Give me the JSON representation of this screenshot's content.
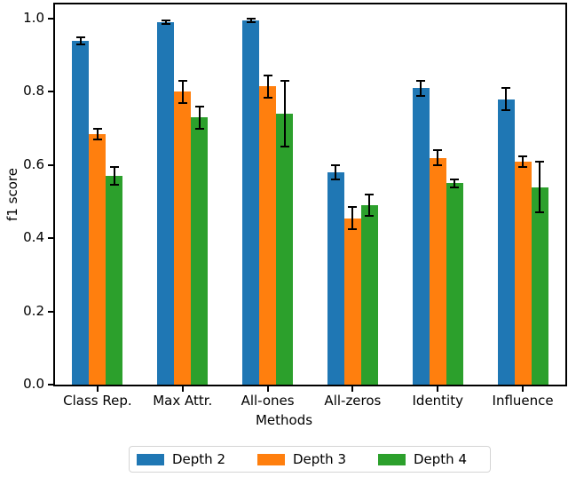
{
  "chart_data": {
    "type": "bar",
    "title": "",
    "xlabel": "Methods",
    "ylabel": "f1 score",
    "categories": [
      "Class Rep.",
      "Max Attr.",
      "All-ones",
      "All-zeros",
      "Identity",
      "Influence"
    ],
    "series": [
      {
        "name": "Depth 2",
        "color": "#1f77b4",
        "hatch": "x",
        "values": [
          0.94,
          0.99,
          0.995,
          0.58,
          0.81,
          0.78
        ],
        "errors": [
          0.01,
          0.005,
          0.005,
          0.02,
          0.02,
          0.03
        ]
      },
      {
        "name": "Depth 3",
        "color": "#ff7f0e",
        "hatch": "",
        "values": [
          0.685,
          0.8,
          0.815,
          0.455,
          0.62,
          0.61
        ],
        "errors": [
          0.015,
          0.03,
          0.03,
          0.03,
          0.02,
          0.015
        ]
      },
      {
        "name": "Depth 4",
        "color": "#2ca02c",
        "hatch": "\\",
        "values": [
          0.57,
          0.73,
          0.74,
          0.49,
          0.55,
          0.54
        ],
        "errors": [
          0.025,
          0.03,
          0.09,
          0.03,
          0.01,
          0.07
        ]
      }
    ],
    "yticks": [
      0.0,
      0.2,
      0.4,
      0.6,
      0.8,
      1.0
    ],
    "ylim": [
      0,
      1.04
    ],
    "grid": false,
    "error_bars": true,
    "legend_position": "bottom-center"
  }
}
